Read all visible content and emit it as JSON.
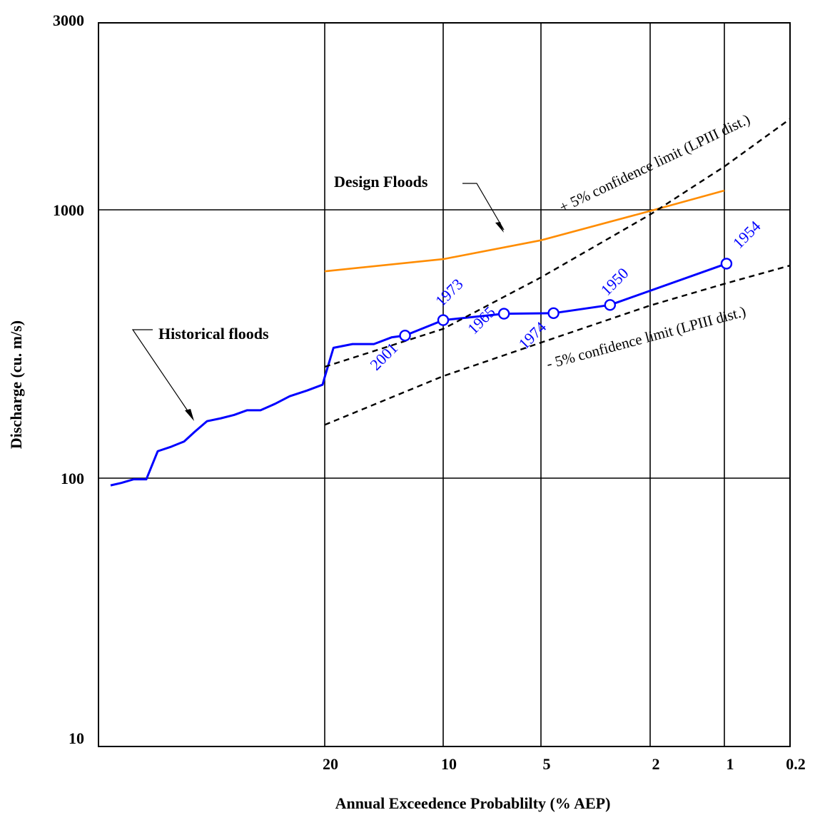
{
  "chart_data": {
    "type": "line",
    "xlabel": "Annual Exceedence Probablilty (% AEP)",
    "ylabel": "Discharge (cu. m/s)",
    "y_scale": "log",
    "ylim": [
      10,
      3000
    ],
    "y_ticks": [
      {
        "value": 3000,
        "label": "3000"
      },
      {
        "value": 1000,
        "label": "1000"
      },
      {
        "value": 100,
        "label": "100"
      },
      {
        "value": 10,
        "label": "10"
      }
    ],
    "x_scale": "probability",
    "x_ticks": [
      {
        "value": 20,
        "label": "20"
      },
      {
        "value": 10,
        "label": "10"
      },
      {
        "value": 5,
        "label": "5"
      },
      {
        "value": 2,
        "label": "2"
      },
      {
        "value": 1,
        "label": "1"
      },
      {
        "value": 0.2,
        "label": "0.2"
      }
    ],
    "grid": true,
    "colors": {
      "historical": "#0000ff",
      "design": "#ff8c00",
      "confidence": "#000000",
      "grid": "#000000"
    },
    "series": [
      {
        "key": "historical",
        "style": "solid",
        "points": [
          [
            null,
            94
          ],
          [
            null,
            96
          ],
          [
            null,
            99
          ],
          [
            null,
            99
          ],
          [
            null,
            126
          ],
          [
            null,
            131
          ],
          [
            null,
            137
          ],
          [
            null,
            149
          ],
          [
            null,
            163
          ],
          [
            null,
            167
          ],
          [
            null,
            172
          ],
          [
            null,
            179
          ],
          [
            null,
            179
          ],
          [
            null,
            189
          ],
          [
            null,
            202
          ],
          [
            null,
            212
          ],
          [
            null,
            223
          ],
          [
            20,
            238
          ],
          [
            19,
            306
          ],
          [
            17,
            316
          ],
          [
            15,
            316
          ],
          [
            13.5,
            335
          ],
          [
            12.5,
            340
          ],
          [
            10,
            388
          ],
          [
            6.5,
            410
          ],
          [
            4.5,
            412
          ],
          [
            2.8,
            442
          ],
          [
            0.95,
            630
          ]
        ]
      },
      {
        "key": "historical-marked",
        "points": [
          [
            12.5,
            340
          ],
          [
            10,
            388
          ],
          [
            6.5,
            410
          ],
          [
            4.5,
            412
          ],
          [
            2.8,
            442
          ],
          [
            0.95,
            630
          ]
        ],
        "years": [
          "2001",
          "1973",
          "1965",
          "1974",
          "1950",
          "1954"
        ]
      },
      {
        "key": "design",
        "style": "solid",
        "points": [
          [
            20,
            590
          ],
          [
            10,
            655
          ],
          [
            5,
            770
          ],
          [
            2,
            990
          ],
          [
            1,
            1180
          ]
        ]
      },
      {
        "key": "upper-confidence",
        "style": "dashed",
        "points": [
          [
            20,
            260
          ],
          [
            10,
            360
          ],
          [
            5,
            560
          ],
          [
            2,
            960
          ],
          [
            1,
            1450
          ],
          [
            0.2,
            2180
          ]
        ]
      },
      {
        "key": "lower-confidence",
        "style": "dashed",
        "points": [
          [
            20,
            158
          ],
          [
            10,
            240
          ],
          [
            5,
            320
          ],
          [
            2,
            440
          ],
          [
            1,
            530
          ],
          [
            0.2,
            620
          ]
        ]
      }
    ],
    "annotations": {
      "design_floods": "Design Floods",
      "historical_floods": "Historical floods",
      "upper_confidence": "+ 5% confidence limit (LPIII dist.)",
      "lower_confidence": "- 5% confidence limit (LPIII dist.)"
    }
  }
}
